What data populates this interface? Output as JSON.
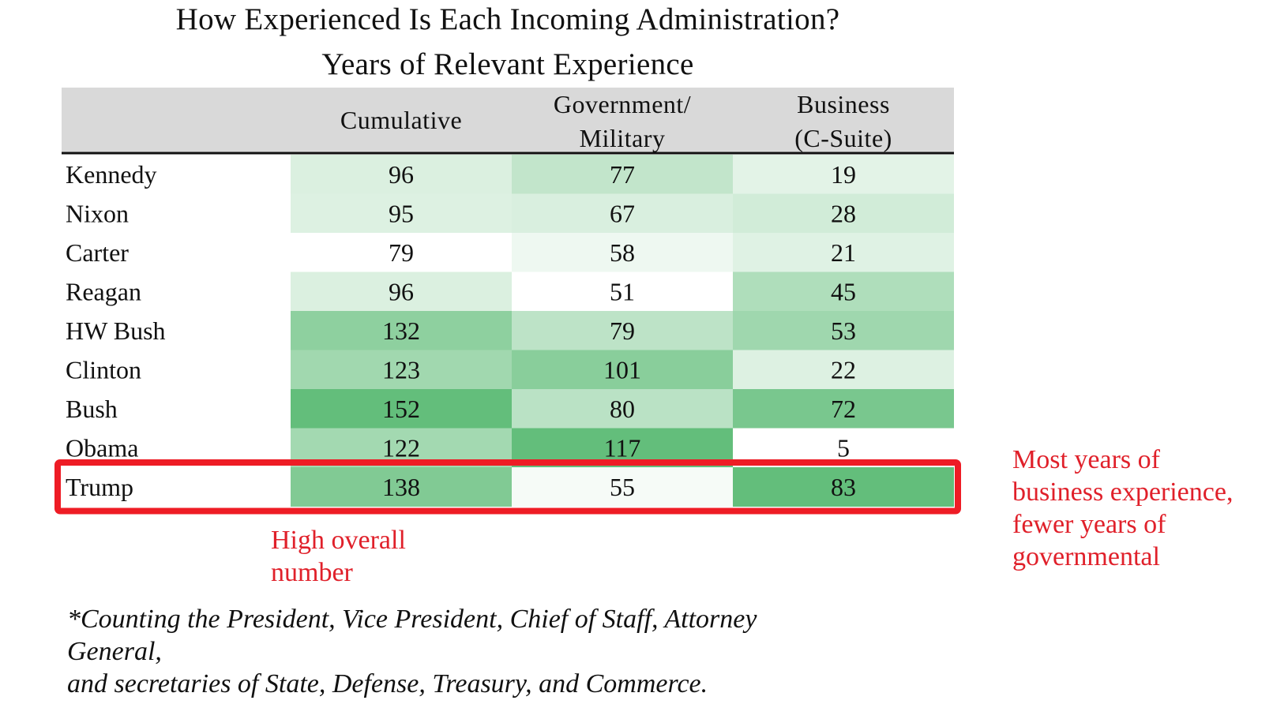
{
  "chart_data": {
    "type": "table",
    "title": "How Experienced Is Each Incoming Administration?",
    "subtitle": "Years of Relevant Experience",
    "columns": [
      {
        "lines": [
          "Cumulative"
        ]
      },
      {
        "lines": [
          "Government/",
          "Military"
        ]
      },
      {
        "lines": [
          "Business",
          "(C-Suite)"
        ]
      }
    ],
    "rows": [
      {
        "label": "Kennedy",
        "values": [
          96,
          77,
          19
        ]
      },
      {
        "label": "Nixon",
        "values": [
          95,
          67,
          28
        ]
      },
      {
        "label": "Carter",
        "values": [
          79,
          58,
          21
        ]
      },
      {
        "label": "Reagan",
        "values": [
          96,
          51,
          45
        ]
      },
      {
        "label": "HW Bush",
        "values": [
          132,
          79,
          53
        ]
      },
      {
        "label": "Clinton",
        "values": [
          123,
          101,
          22
        ]
      },
      {
        "label": "Bush",
        "values": [
          152,
          80,
          72
        ]
      },
      {
        "label": "Obama",
        "values": [
          122,
          117,
          5
        ]
      },
      {
        "label": "Trump",
        "values": [
          138,
          55,
          83
        ]
      }
    ],
    "highlighted_row": "Trump",
    "color_scale": {
      "low": "#ffffff",
      "high": "#63be7b"
    }
  },
  "colors": {
    "header_bg": "#d9d9d9",
    "highlight_box": "#ee1c25",
    "annotation": "#e0202a"
  },
  "annotations": {
    "left": [
      "High overall",
      "number"
    ],
    "right": [
      "Most years of",
      "business experience,",
      "fewer years of",
      "governmental"
    ]
  },
  "footnote": [
    "*Counting the President, Vice President, Chief of Staff, Attorney",
    "General,",
    "and secretaries of State, Defense, Treasury, and Commerce."
  ]
}
